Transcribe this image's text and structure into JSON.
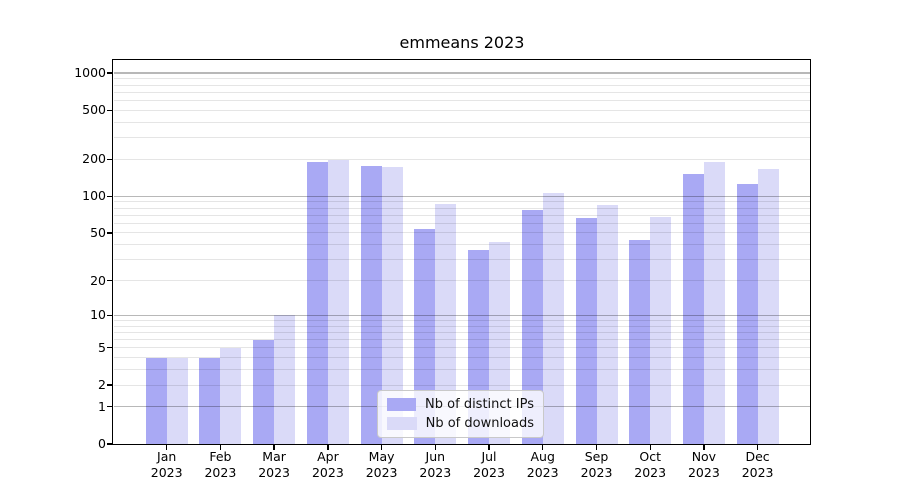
{
  "chart_data": {
    "type": "bar",
    "title": "emmeans 2023",
    "year": "2023",
    "categories": [
      "Jan",
      "Feb",
      "Mar",
      "Apr",
      "May",
      "Jun",
      "Jul",
      "Aug",
      "Sep",
      "Oct",
      "Nov",
      "Dec"
    ],
    "series": [
      {
        "name": "Nb of distinct IPs",
        "color": "#a9a9f4",
        "values": [
          4,
          4,
          6,
          190,
          175,
          54,
          36,
          77,
          66,
          44,
          152,
          126
        ]
      },
      {
        "name": "Nb of downloads",
        "color": "#dadaf8",
        "values": [
          4,
          5,
          10,
          196,
          172,
          86,
          42,
          107,
          85,
          67,
          190,
          166
        ]
      }
    ],
    "yscale": "log1p",
    "yticks": [
      0,
      1,
      2,
      5,
      10,
      20,
      50,
      100,
      200,
      500,
      1000
    ],
    "major_gridlines": [
      1,
      10,
      100,
      1000
    ],
    "ylim": [
      0,
      1275
    ],
    "xlabel": "",
    "ylabel": "",
    "grid": "horizontal, minor lines 2-9 per decade, drawn over bars",
    "legend_position": "lower center"
  }
}
